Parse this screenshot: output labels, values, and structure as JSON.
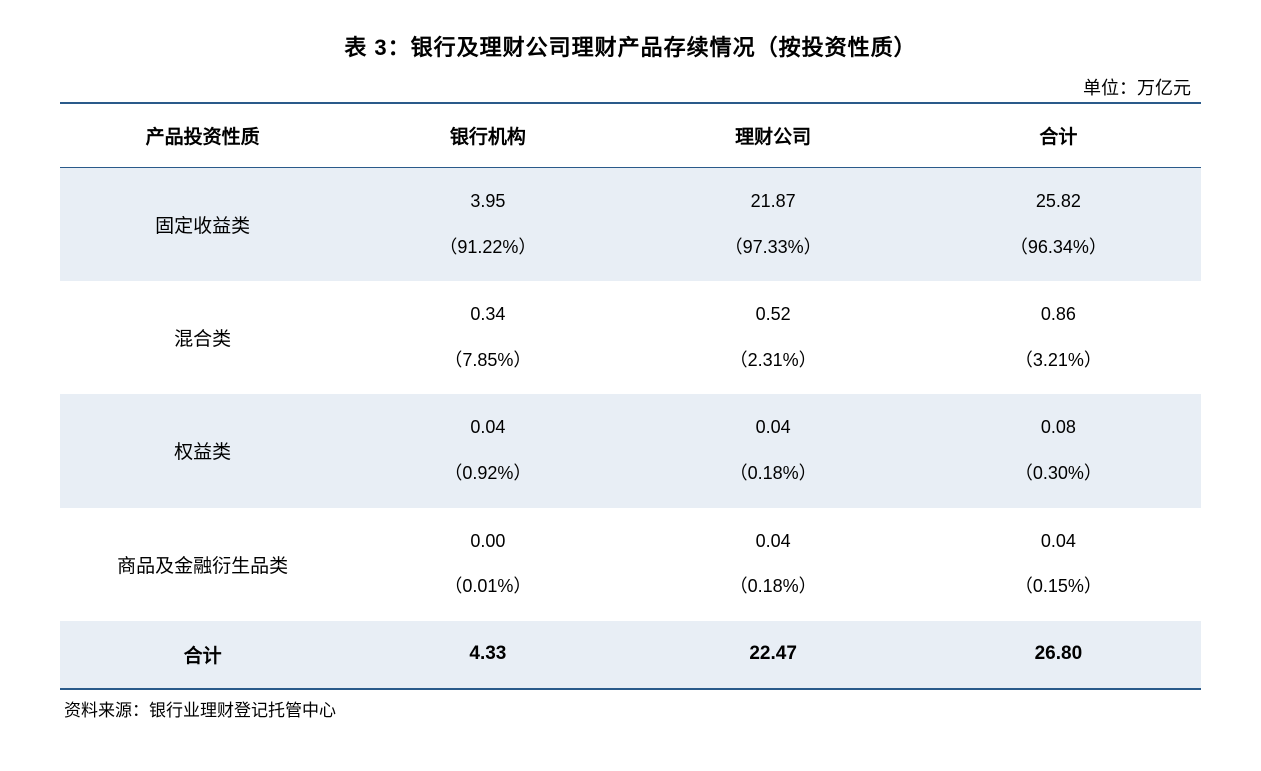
{
  "title": "表 3：银行及理财公司理财产品存续情况（按投资性质）",
  "unit": "单位：万亿元",
  "columns": [
    "产品投资性质",
    "银行机构",
    "理财公司",
    "合计"
  ],
  "rows": [
    {
      "label": "固定收益类",
      "values": [
        {
          "num": "3.95",
          "pct": "（91.22%）"
        },
        {
          "num": "21.87",
          "pct": "（97.33%）"
        },
        {
          "num": "25.82",
          "pct": "（96.34%）"
        }
      ]
    },
    {
      "label": "混合类",
      "values": [
        {
          "num": "0.34",
          "pct": "（7.85%）"
        },
        {
          "num": "0.52",
          "pct": "（2.31%）"
        },
        {
          "num": "0.86",
          "pct": "（3.21%）"
        }
      ]
    },
    {
      "label": "权益类",
      "values": [
        {
          "num": "0.04",
          "pct": "（0.92%）"
        },
        {
          "num": "0.04",
          "pct": "（0.18%）"
        },
        {
          "num": "0.08",
          "pct": "（0.30%）"
        }
      ]
    },
    {
      "label": "商品及金融衍生品类",
      "values": [
        {
          "num": "0.00",
          "pct": "（0.01%）"
        },
        {
          "num": "0.04",
          "pct": "（0.18%）"
        },
        {
          "num": "0.04",
          "pct": "（0.15%）"
        }
      ]
    }
  ],
  "total": {
    "label": "合计",
    "values": [
      "4.33",
      "22.47",
      "26.80"
    ]
  },
  "source": "资料来源：银行业理财登记托管中心",
  "colors": {
    "border": "#2a5a8a",
    "stripe": "#e8eef5",
    "text": "#000000",
    "background": "#ffffff"
  }
}
